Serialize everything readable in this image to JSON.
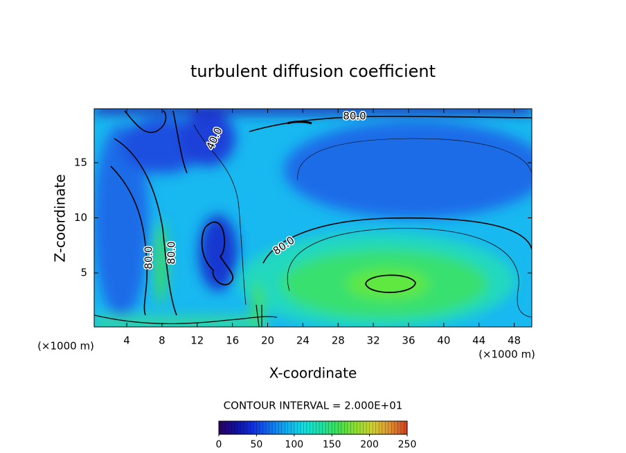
{
  "chart_data": {
    "type": "contour",
    "title": "turbulent diffusion coefficient",
    "x_label": "X-coordinate",
    "y_label": "Z-coordinate",
    "x_unit": "(×1000 m)",
    "y_unit": "(×1000 m)",
    "xlim": [
      0.3,
      50
    ],
    "ylim": [
      0.1,
      19.9
    ],
    "xticks": [
      4,
      8,
      12,
      16,
      20,
      24,
      28,
      32,
      36,
      40,
      44,
      48
    ],
    "yticks": [
      5,
      10,
      15
    ],
    "contour_note": "CONTOUR INTERVAL = 2.000E+01",
    "contour_labels": [
      {
        "value": 80,
        "label": "80.0"
      },
      {
        "value": 40,
        "label": "40.0"
      },
      {
        "value": 80,
        "label": "80.0"
      },
      {
        "value": 80,
        "label": "80.0"
      },
      {
        "value": 80,
        "label": "80.0"
      }
    ],
    "colorbar": {
      "lim": [
        0,
        250
      ],
      "ticks": [
        0,
        50,
        100,
        150,
        200,
        250
      ],
      "colors": [
        "#2a0060",
        "#1010a0",
        "#1030e0",
        "#1070f0",
        "#10b0f0",
        "#10e0e0",
        "#20e0a0",
        "#40e050",
        "#90e030",
        "#d0d030",
        "#e09030",
        "#d04020"
      ]
    }
  }
}
